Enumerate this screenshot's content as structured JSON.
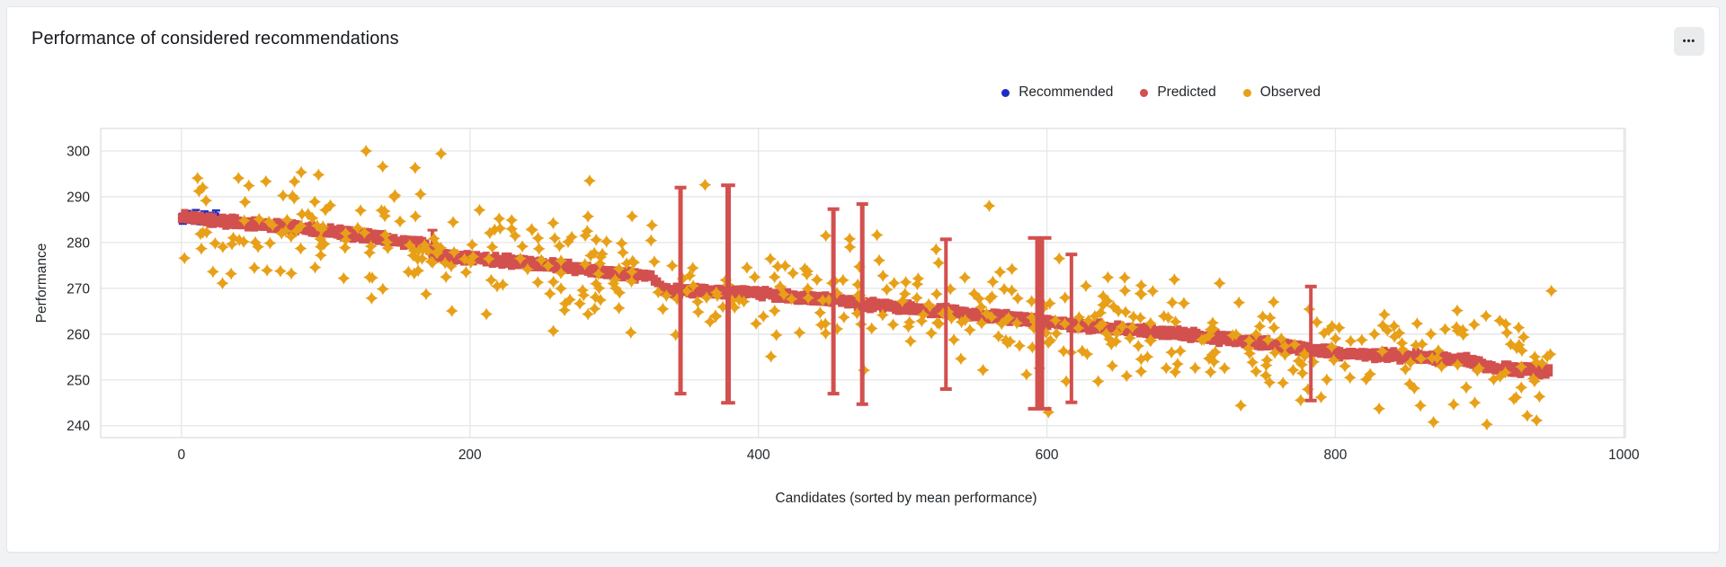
{
  "page": {
    "background": "#f1f2f4"
  },
  "card": {
    "title": "Performance of considered recommendations",
    "menu_icon": "•••"
  },
  "theme": {
    "card_background": "#ffffff",
    "card_border": "#e5e7ea",
    "button_background": "#e9ebed",
    "grid_color": "#e4e6e8",
    "plot_border_color": "#dcdfe2",
    "tick_label_color": "#24282c",
    "axis_title_color": "#1f2428",
    "title_color": "#16191d"
  },
  "chart_data": {
    "type": "scatter",
    "title": "Performance of considered recommendations",
    "xlabel": "Candidates (sorted by mean performance)",
    "ylabel": "Performance",
    "x_ticks": [
      0,
      200,
      400,
      600,
      800,
      1000
    ],
    "y_ticks": [
      240,
      250,
      260,
      270,
      280,
      290,
      300
    ],
    "xlim": [
      -56,
      1001
    ],
    "ylim": [
      237.4,
      304.9
    ],
    "grid": true,
    "legend_position": "top-right",
    "series": [
      {
        "name": "Recommended",
        "color": "#202cc4",
        "marker": "square",
        "render": "points-with-errorbars",
        "error_halfwidth": 1.1,
        "points": [
          [
            1,
            285.2
          ],
          [
            4,
            285.8
          ],
          [
            7,
            285.4
          ],
          [
            10,
            286.0
          ],
          [
            13,
            285.1
          ],
          [
            16,
            285.7
          ],
          [
            20,
            285.4
          ],
          [
            24,
            285.9
          ]
        ]
      },
      {
        "name": "Predicted",
        "color": "#d2504e",
        "marker": "square",
        "render": "band",
        "x_start": 0,
        "x_end": 950,
        "x_step": 2.2,
        "band_halfwidth": [
          1.05,
          1.7
        ],
        "seed": 7,
        "trend": [
          [
            0,
            285.6
          ],
          [
            60,
            283.8
          ],
          [
            120,
            281.8
          ],
          [
            168,
            279.6
          ],
          [
            176,
            277.2
          ],
          [
            240,
            275.6
          ],
          [
            300,
            273.4
          ],
          [
            326,
            272.6
          ],
          [
            334,
            269.6
          ],
          [
            400,
            269.0
          ],
          [
            430,
            268.0
          ],
          [
            470,
            266.8
          ],
          [
            500,
            265.8
          ],
          [
            560,
            264.0
          ],
          [
            600,
            262.6
          ],
          [
            650,
            261.2
          ],
          [
            700,
            259.8
          ],
          [
            760,
            257.6
          ],
          [
            800,
            255.9
          ],
          [
            860,
            255.0
          ],
          [
            895,
            254.2
          ],
          [
            905,
            252.8
          ],
          [
            950,
            251.8
          ]
        ],
        "small_error_bars": [
          {
            "x": 174,
            "lo": 276.0,
            "hi": 282.7
          }
        ],
        "big_error_bars": [
          {
            "x": 346,
            "lo": 247.0,
            "hi": 292.0,
            "w": 5
          },
          {
            "x": 379,
            "lo": 245.0,
            "hi": 292.5,
            "w": 6
          },
          {
            "x": 452,
            "lo": 247.0,
            "hi": 287.3,
            "w": 5
          },
          {
            "x": 472,
            "lo": 244.7,
            "hi": 288.4,
            "w": 5
          },
          {
            "x": 530,
            "lo": 248.0,
            "hi": 280.7,
            "w": 4
          },
          {
            "x": 595,
            "lo": 243.7,
            "hi": 281.0,
            "w": 10
          },
          {
            "x": 617,
            "lo": 245.1,
            "hi": 277.4,
            "w": 4
          },
          {
            "x": 783,
            "lo": 245.5,
            "hi": 270.4,
            "w": 4
          }
        ]
      },
      {
        "name": "Observed",
        "color": "#e8a018",
        "marker": "four-pointed-star",
        "render": "scatter",
        "generator": {
          "count": 540,
          "x_min": 2,
          "x_max": 950,
          "noise_sd": 6.3,
          "seed": 42,
          "y_min": 239.8,
          "y_max": 300.3
        },
        "outliers": [
          [
            128,
            300.0
          ],
          [
            180,
            299.4
          ],
          [
            162,
            296.3
          ],
          [
            95,
            294.8
          ],
          [
            283,
            293.5
          ],
          [
            363,
            292.6
          ],
          [
            560,
            288.0
          ],
          [
            905,
            240.3
          ],
          [
            868,
            240.8
          ]
        ]
      }
    ]
  }
}
